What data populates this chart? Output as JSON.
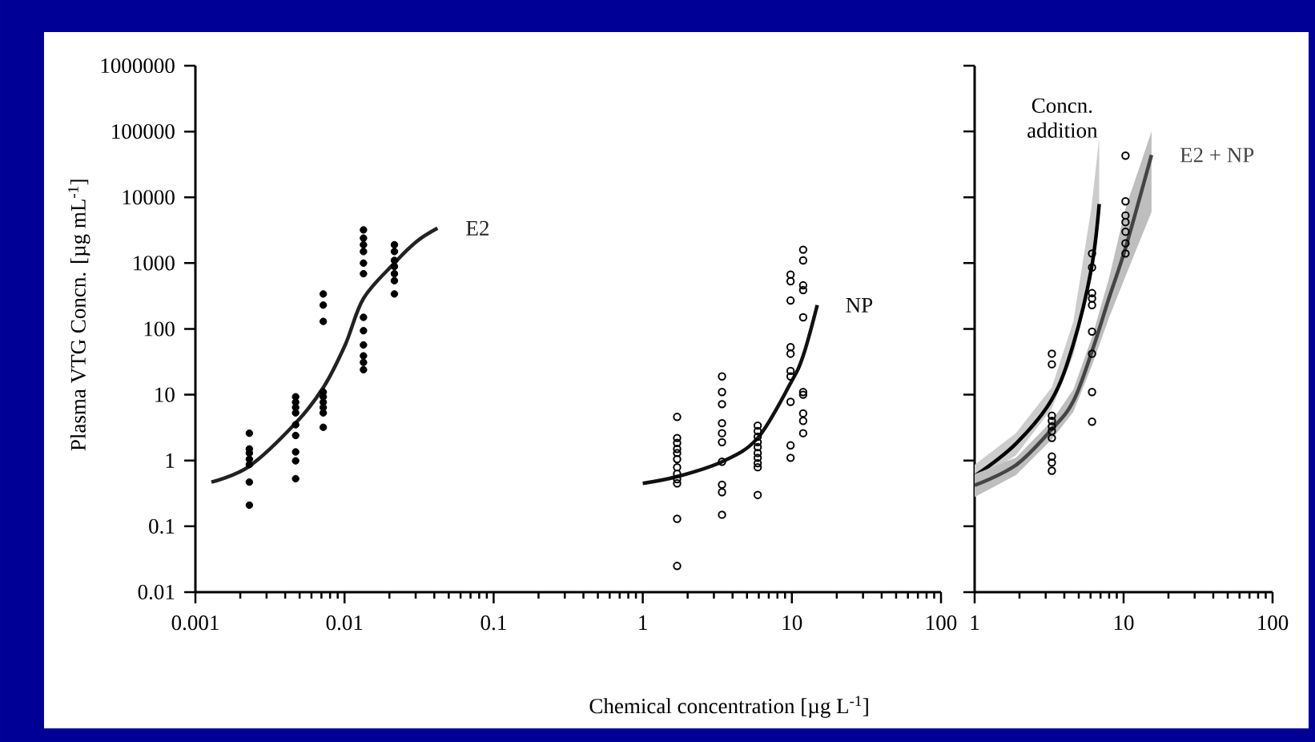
{
  "chart_data": [
    {
      "type": "scatter",
      "xlabel": "Chemical concentration [µg L$^{-1}$]",
      "ylabel": "Plasma VTG Concn. [µg mL$^{-1}$]",
      "log": "xy",
      "xlim": [
        0.001,
        100
      ],
      "ylim": [
        0.01,
        1000000
      ],
      "xticks": [
        0.001,
        0.01,
        0.1,
        1,
        10,
        100
      ],
      "yticks": [
        0.01,
        0.1,
        1,
        10,
        100,
        1000,
        10000,
        100000,
        1000000
      ],
      "series": [
        {
          "marker": "circle",
          "color": "#000000",
          "x": [
            0.0023,
            0.0023,
            0.0023,
            0.0023,
            0.0023,
            0.0023,
            0.0023,
            0.0047,
            0.0047,
            0.0047,
            0.0047,
            0.0047,
            0.0047,
            0.0047,
            0.0047,
            0.0047,
            0.0072,
            0.0072,
            0.0072,
            0.0072,
            0.0072,
            0.0072,
            0.0072,
            0.0072,
            0.0072,
            0.0134,
            0.0134,
            0.0134,
            0.0134,
            0.0134,
            0.0134,
            0.0134,
            0.0134,
            0.0134,
            0.0134,
            0.0134,
            0.0134,
            0.0216,
            0.0216,
            0.0216,
            0.0216,
            0.0216,
            0.0216,
            0.0216
          ],
          "values": [
            2.6,
            1.5,
            1.3,
            1.05,
            0.87,
            0.47,
            0.21,
            9.3,
            7.7,
            6.4,
            5.3,
            3.5,
            2.4,
            1.35,
            0.99,
            0.53,
            340,
            230,
            130,
            11,
            9.3,
            7.7,
            6.4,
            5.3,
            3.2,
            3200,
            2400,
            1900,
            1500,
            1000,
            690,
            150,
            94,
            57,
            39,
            31,
            24,
            1900,
            1500,
            1100,
            890,
            690,
            540,
            340
          ]
        },
        {
          "type": "line",
          "name": "E2",
          "color": "#222222",
          "x": [
            0.00128,
            0.0023,
            0.0047,
            0.0072,
            0.0101,
            0.0134,
            0.0216,
            0.0304,
            0.042
          ],
          "values": [
            0.47,
            0.82,
            3.7,
            12.8,
            57,
            290,
            1000,
            2130,
            3400
          ]
        },
        {
          "marker": "circle_open",
          "color": "#000000",
          "x": [
            1.7,
            1.7,
            1.7,
            1.7,
            1.7,
            1.7,
            1.7,
            1.7,
            1.7,
            1.7,
            1.7,
            1.7,
            3.4,
            3.4,
            3.4,
            3.4,
            3.4,
            3.4,
            3.4,
            3.4,
            3.4,
            3.4,
            5.9,
            5.9,
            5.9,
            5.9,
            5.9,
            5.9,
            5.9,
            5.9,
            5.9,
            5.9,
            9.8,
            9.8,
            9.8,
            9.8,
            9.8,
            9.8,
            9.8,
            9.8,
            9.8,
            9.8,
            11.9,
            11.9,
            11.9,
            11.9,
            11.9,
            11.9,
            11.9,
            11.9,
            11.9,
            11.9
          ],
          "values": [
            4.6,
            2.2,
            1.85,
            1.5,
            1.3,
            1.05,
            0.79,
            0.63,
            0.52,
            0.45,
            0.13,
            0.025,
            19,
            11,
            7.2,
            3.7,
            2.6,
            1.9,
            0.96,
            0.43,
            0.33,
            0.15,
            3.4,
            2.8,
            2.3,
            1.9,
            1.6,
            1.3,
            1.1,
            0.91,
            0.79,
            0.3,
            670,
            530,
            270,
            53,
            42,
            23,
            19,
            7.8,
            1.7,
            1.1,
            1600,
            1100,
            460,
            390,
            150,
            11,
            10,
            5.2,
            4,
            2.6
          ]
        },
        {
          "type": "line",
          "name": "NP",
          "color": "#111111",
          "x": [
            1.0,
            1.7,
            3.4,
            5.9,
            9.8,
            11.9,
            14.8
          ],
          "values": [
            0.45,
            0.57,
            0.96,
            2.2,
            15,
            39,
            230
          ]
        }
      ]
    },
    {
      "type": "scatter",
      "log": "xy",
      "tick_labels": "x",
      "xlim": [
        1,
        100
      ],
      "ylim": [
        0.01,
        1000000
      ],
      "xticks": [
        1,
        10,
        100
      ],
      "yticks": [
        0.01,
        0.1,
        1,
        10,
        100,
        1000,
        10000,
        100000,
        1000000
      ],
      "series": [
        {
          "type": "line",
          "name": "Concn. addition",
          "color": "#000000",
          "x": [
            1,
            1.89,
            3.3,
            4.6,
            6.07,
            6.86
          ],
          "values": [
            0.58,
            1.8,
            8.5,
            59,
            810,
            7900
          ],
          "lower": [
            0.47,
            1.2,
            6.2,
            40,
            560,
            5300
          ],
          "upper": [
            0.86,
            2.6,
            13,
            130,
            6800,
            80000
          ]
        },
        {
          "type": "line",
          "name": "E2 + NP",
          "color": "#444444",
          "x": [
            1,
            1.89,
            3.3,
            4.6,
            6.14,
            8.0,
            10.3,
            15.4
          ],
          "values": [
            0.42,
            0.85,
            3,
            8,
            46,
            300,
            1700,
            44000
          ],
          "lower": [
            0.28,
            0.6,
            2.1,
            5.5,
            28,
            150,
            630,
            6000
          ],
          "upper": [
            0.62,
            1.1,
            4,
            12,
            75,
            600,
            6800,
            100000
          ]
        },
        {
          "marker": "circle_open",
          "color": "#000000",
          "x": [
            3.3,
            3.3,
            3.3,
            3.3,
            3.3,
            3.3,
            3.3,
            3.3,
            3.3,
            3.3,
            6.14,
            6.14,
            6.14,
            6.14,
            6.14,
            6.14,
            6.14,
            6.14,
            6.14,
            10.3,
            10.3,
            10.3,
            10.3,
            10.3,
            10.3,
            10.3
          ],
          "values": [
            42,
            29,
            4.8,
            4,
            3.3,
            2.8,
            2.2,
            1.15,
            0.93,
            0.7,
            1400,
            860,
            350,
            290,
            230,
            91,
            42,
            11,
            3.9,
            43000,
            8700,
            5300,
            4200,
            3000,
            2000,
            1400
          ]
        }
      ]
    }
  ]
}
